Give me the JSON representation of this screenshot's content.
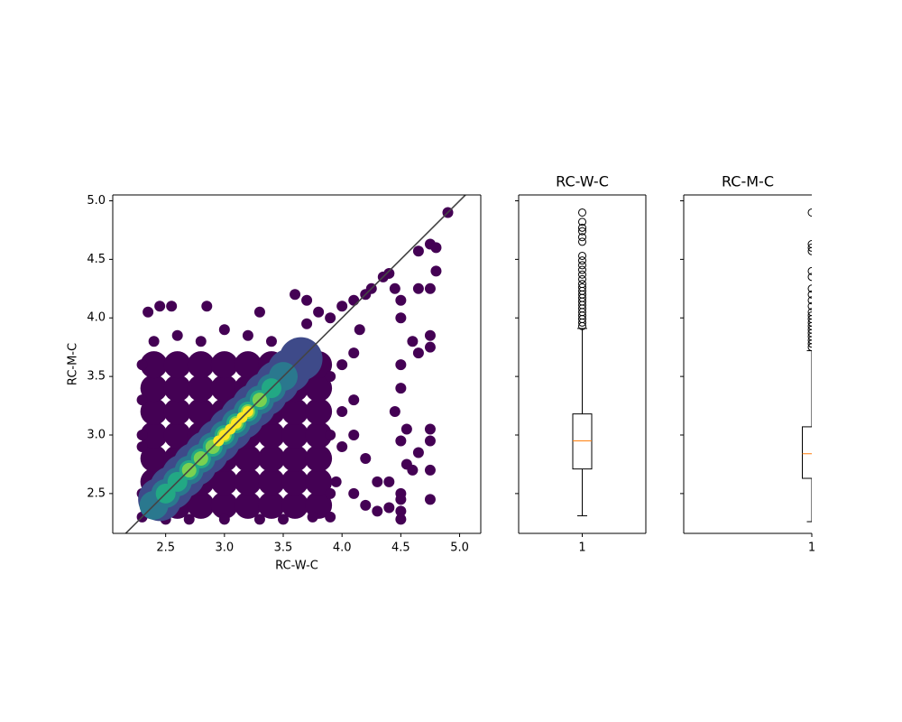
{
  "chart_data": [
    {
      "type": "scatter",
      "xlabel": "RC-W-C",
      "ylabel": "RC-M-C",
      "xlim": [
        2.05,
        5.18
      ],
      "ylim": [
        2.16,
        5.05
      ],
      "xticks": [
        2.5,
        {
          "value": 3,
          "label": "3.0"
        },
        3.5,
        {
          "value": 4,
          "label": "4.0"
        },
        4.5,
        {
          "value": 5,
          "label": "5.0"
        }
      ],
      "yticks": [
        2.5,
        {
          "value": 3,
          "label": "3.0"
        },
        3.5,
        {
          "value": 4,
          "label": "4.0"
        },
        4.5,
        {
          "value": 5,
          "label": "5.0"
        }
      ],
      "reference_line": {
        "slope": 1,
        "intercept": 0,
        "color": "#444444"
      },
      "series": [
        {
          "color": "#440154",
          "x": [
            2.4,
            2.6,
            2.8,
            3.0,
            3.2,
            3.4,
            3.6,
            3.8,
            2.4,
            2.6,
            2.8,
            3.0,
            3.2,
            3.4,
            3.6,
            3.8,
            2.4,
            2.6,
            2.8,
            3.0,
            3.2,
            3.4,
            3.6,
            3.8,
            2.4,
            2.6,
            2.8,
            3.0,
            3.2,
            3.4,
            3.6,
            3.8,
            2.4,
            2.6,
            2.8,
            3.0,
            3.2,
            3.4,
            3.6,
            3.8,
            2.4,
            2.6,
            2.8,
            3.0,
            3.2,
            3.4,
            3.6,
            3.8,
            2.4,
            2.6,
            2.8,
            3.0,
            3.2,
            3.4,
            3.6,
            3.8
          ],
          "y": [
            2.4,
            2.4,
            2.4,
            2.4,
            2.4,
            2.4,
            2.4,
            2.4,
            2.6,
            2.6,
            2.6,
            2.6,
            2.6,
            2.6,
            2.6,
            2.6,
            2.8,
            2.8,
            2.8,
            2.8,
            2.8,
            2.8,
            2.8,
            2.8,
            3.0,
            3.0,
            3.0,
            3.0,
            3.0,
            3.0,
            3.0,
            3.0,
            3.2,
            3.2,
            3.2,
            3.2,
            3.2,
            3.2,
            3.2,
            3.2,
            3.4,
            3.4,
            3.4,
            3.4,
            3.4,
            3.4,
            3.4,
            3.4,
            3.6,
            3.6,
            3.6,
            3.6,
            3.6,
            3.6,
            3.6,
            3.6
          ]
        },
        {
          "color": "#440154",
          "x": [
            4.9,
            4.75,
            4.8,
            4.8,
            4.65,
            4.65,
            4.75,
            4.4,
            4.35,
            4.45,
            4.5,
            4.2,
            4.25,
            4.1,
            4.0,
            3.6,
            3.7,
            3.3,
            2.35,
            2.45,
            2.55,
            2.85,
            3.9,
            3.8,
            4.5,
            4.6,
            4.75,
            4.75,
            4.65,
            4.5,
            4.5,
            4.45,
            4.55,
            4.75,
            4.75,
            4.75,
            4.65,
            4.5,
            4.55,
            4.5,
            4.5,
            4.4,
            4.6,
            4.75,
            4.5,
            4.5,
            4.4,
            4.3,
            4.2,
            4.1,
            4.2,
            4.3,
            4.1,
            4.1,
            4.0,
            4.1,
            4.15,
            2.3,
            2.3,
            2.3,
            2.3,
            2.3,
            2.5,
            3.0,
            3.5,
            3.9,
            4.0,
            3.95,
            2.6,
            3.0,
            3.4,
            3.7,
            2.4,
            3.2,
            3.9,
            3.9,
            3.9,
            2.3,
            2.7,
            3.3,
            3.75,
            2.8,
            3.6,
            4.0
          ],
          "y": [
            4.9,
            4.63,
            4.6,
            4.4,
            4.57,
            4.25,
            4.25,
            4.38,
            4.35,
            4.25,
            4.15,
            4.2,
            4.25,
            4.15,
            4.1,
            4.2,
            4.15,
            4.05,
            4.05,
            4.1,
            4.1,
            4.1,
            4.0,
            4.05,
            4.0,
            3.8,
            3.85,
            3.75,
            3.7,
            3.6,
            3.4,
            3.2,
            3.05,
            3.05,
            2.95,
            2.7,
            2.85,
            2.95,
            2.75,
            2.5,
            2.45,
            2.6,
            2.7,
            2.45,
            2.35,
            2.28,
            2.38,
            2.35,
            2.4,
            2.5,
            2.8,
            2.6,
            3.0,
            3.3,
            3.6,
            3.7,
            3.9,
            3.6,
            3.3,
            2.9,
            2.5,
            2.3,
            2.28,
            2.28,
            2.28,
            2.3,
            3.2,
            2.6,
            3.85,
            3.9,
            3.8,
            3.95,
            3.8,
            3.85,
            3.5,
            3.0,
            2.5,
            3.0,
            2.28,
            2.28,
            2.3,
            3.8,
            3.75,
            2.9
          ]
        },
        {
          "color": "#3e4a89",
          "x": [
            2.45,
            2.55,
            2.65,
            2.75,
            2.85,
            2.95,
            3.05,
            3.15,
            3.25,
            3.35,
            3.45,
            3.55,
            3.65
          ],
          "y": [
            2.45,
            2.55,
            2.65,
            2.75,
            2.85,
            2.95,
            3.05,
            3.15,
            3.25,
            3.35,
            3.45,
            3.55,
            3.65
          ]
        },
        {
          "color": "#2a788e",
          "x": [
            2.4,
            2.5,
            2.6,
            2.7,
            2.8,
            2.9,
            3.0,
            3.1,
            3.2,
            3.3,
            3.4,
            3.5
          ],
          "y": [
            2.4,
            2.5,
            2.6,
            2.7,
            2.8,
            2.9,
            3.0,
            3.1,
            3.2,
            3.3,
            3.4,
            3.5
          ]
        },
        {
          "color": "#22a884",
          "x": [
            2.5,
            2.6,
            2.7,
            2.8,
            2.9,
            3.0,
            3.1,
            3.2,
            3.3,
            3.4
          ],
          "y": [
            2.5,
            2.6,
            2.7,
            2.8,
            2.9,
            3.0,
            3.1,
            3.2,
            3.3,
            3.4
          ]
        },
        {
          "color": "#7ad151",
          "x": [
            2.7,
            2.8,
            2.9,
            3.0,
            3.1,
            3.2,
            3.3
          ],
          "y": [
            2.7,
            2.8,
            2.9,
            3.0,
            3.1,
            3.2,
            3.3
          ]
        },
        {
          "color": "#fde725",
          "x": [
            2.95,
            3.0,
            3.05,
            3.1,
            3.15,
            3.2
          ],
          "y": [
            2.95,
            3.0,
            3.05,
            3.1,
            3.15,
            3.2
          ]
        }
      ]
    },
    {
      "type": "box",
      "title": "RC-W-C",
      "sharey": true,
      "xlim": [
        0.5,
        1.5
      ],
      "xticks": [
        1
      ],
      "median_color": "#ff7f0e",
      "boxes": [
        {
          "position": 1,
          "whislo": 2.31,
          "q1": 2.71,
          "med": 2.95,
          "q3": 3.18,
          "whishi": 3.91,
          "fliers": [
            4.9,
            4.82,
            4.77,
            4.74,
            4.69,
            4.65,
            4.53,
            4.49,
            4.45,
            4.41,
            4.37,
            4.33,
            4.29,
            4.26,
            4.23,
            4.2,
            4.17,
            4.14,
            4.11,
            4.08,
            4.05,
            4.02,
            3.99,
            3.96,
            3.93
          ]
        }
      ]
    },
    {
      "type": "box",
      "title": "RC-M-C",
      "sharey": true,
      "xlim": [
        0,
        1
      ],
      "xticks": [
        1
      ],
      "median_color": "#ff7f0e",
      "spines": [
        "left",
        "top",
        "bottom"
      ],
      "boxes": [
        {
          "position": 1,
          "whislo": 2.26,
          "q1": 2.63,
          "med": 2.84,
          "q3": 3.07,
          "whishi": 3.72,
          "fliers": [
            4.9,
            4.63,
            4.6,
            4.57,
            4.4,
            4.35,
            4.25,
            4.2,
            4.15,
            4.1,
            4.05,
            4.02,
            3.99,
            3.96,
            3.93,
            3.9,
            3.87,
            3.84,
            3.81,
            3.78,
            3.75
          ]
        }
      ]
    }
  ]
}
